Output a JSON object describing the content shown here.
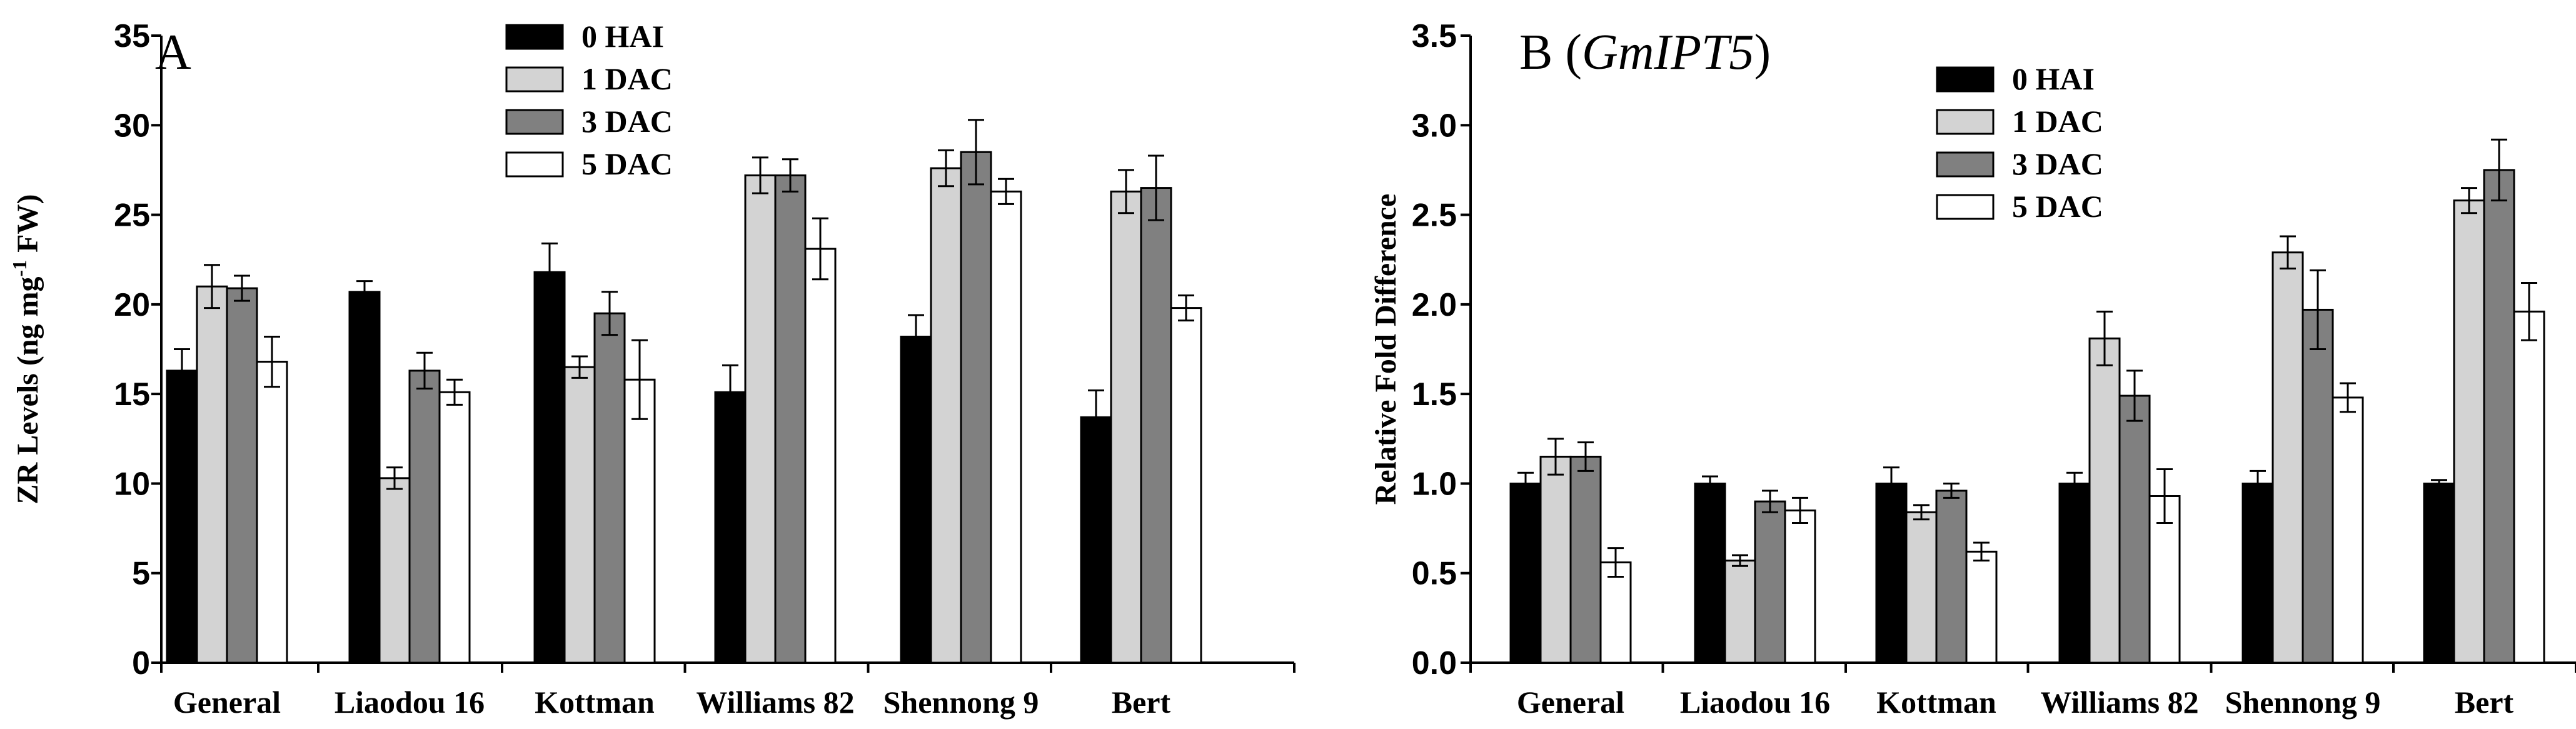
{
  "chart_data": [
    {
      "type": "bar",
      "panel_letter": "A",
      "title": "A",
      "ylabel": "ZR Levels (ng mg-1 FW)",
      "ylabel_main": "ZR Levels (ng mg",
      "ylabel_sup": "-1",
      "ylabel_tail": " FW)",
      "xlabel": "",
      "ylim": [
        0,
        35
      ],
      "yticks": [
        0,
        5,
        10,
        15,
        20,
        25,
        30,
        35
      ],
      "ytick_labels": [
        "0",
        "5",
        "10",
        "15",
        "20",
        "25",
        "30",
        "35"
      ],
      "categories": [
        "General",
        "Liaodou 16",
        "Kottman",
        "Williams 82",
        "Shennong 9",
        "Bert"
      ],
      "legend_position": "top-center",
      "series": [
        {
          "name": "0 HAI",
          "color": "#000000",
          "values": [
            16.3,
            20.7,
            21.8,
            15.1,
            18.2,
            13.7
          ],
          "errors": [
            1.2,
            0.6,
            1.6,
            1.5,
            1.2,
            1.5
          ]
        },
        {
          "name": "1 DAC",
          "color": "#d3d3d3",
          "values": [
            21.0,
            10.3,
            16.5,
            27.2,
            27.6,
            26.3
          ],
          "errors": [
            1.2,
            0.6,
            0.6,
            1.0,
            1.0,
            1.2
          ]
        },
        {
          "name": "3 DAC",
          "color": "#808080",
          "values": [
            20.9,
            16.3,
            19.5,
            27.2,
            28.5,
            26.5
          ],
          "errors": [
            0.7,
            1.0,
            1.2,
            0.9,
            1.8,
            1.8
          ]
        },
        {
          "name": "5 DAC",
          "color": "#ffffff",
          "values": [
            16.8,
            15.1,
            15.8,
            23.1,
            26.3,
            19.8
          ],
          "errors": [
            1.4,
            0.7,
            2.2,
            1.7,
            0.7,
            0.7
          ]
        }
      ]
    },
    {
      "type": "bar",
      "panel_letter": "B",
      "title": "B (GmIPT5)",
      "title_prefix": "B (",
      "title_gene": "GmIPT5",
      "title_suffix": ")",
      "ylabel": "Relative  Fold  Difference",
      "xlabel": "",
      "ylim": [
        0,
        3.5
      ],
      "yticks": [
        0,
        0.5,
        1,
        1.5,
        2,
        2.5,
        3,
        3.5
      ],
      "ytick_labels": [
        "0.0",
        "0.5",
        "1.0",
        "1.5",
        "2.0",
        "2.5",
        "3.0",
        "3.5"
      ],
      "categories": [
        "General",
        "Liaodou 16",
        "Kottman",
        "Williams 82",
        "Shennong 9",
        "Bert"
      ],
      "legend_position": "top-center",
      "series": [
        {
          "name": "0 HAI",
          "color": "#000000",
          "values": [
            1.0,
            1.0,
            1.0,
            1.0,
            1.0,
            1.0
          ],
          "errors": [
            0.06,
            0.04,
            0.09,
            0.06,
            0.07,
            0.02
          ]
        },
        {
          "name": "1 DAC",
          "color": "#d3d3d3",
          "values": [
            1.15,
            0.57,
            0.84,
            1.81,
            2.29,
            2.58
          ],
          "errors": [
            0.1,
            0.03,
            0.04,
            0.15,
            0.09,
            0.07
          ]
        },
        {
          "name": "3 DAC",
          "color": "#808080",
          "values": [
            1.15,
            0.9,
            0.96,
            1.49,
            1.97,
            2.75
          ],
          "errors": [
            0.08,
            0.06,
            0.04,
            0.14,
            0.22,
            0.17
          ]
        },
        {
          "name": "5 DAC",
          "color": "#ffffff",
          "values": [
            0.56,
            0.85,
            0.62,
            0.93,
            1.48,
            1.96
          ],
          "errors": [
            0.08,
            0.07,
            0.05,
            0.15,
            0.08,
            0.16
          ]
        }
      ]
    }
  ]
}
